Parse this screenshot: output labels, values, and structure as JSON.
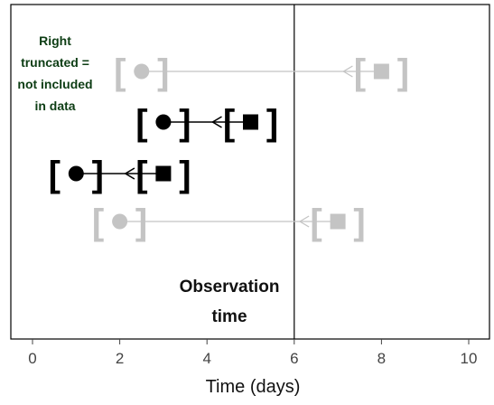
{
  "x_axis": {
    "label": "Time (days)",
    "ticks": [
      0,
      2,
      4,
      6,
      8,
      10
    ],
    "range": [
      -0.5,
      10.5
    ]
  },
  "observation_time": {
    "value": 6,
    "label_line1": "Observation",
    "label_line2": "time"
  },
  "note": {
    "lines": [
      "Right",
      "truncated =",
      "not included",
      "in data"
    ],
    "color": "#0d3d14"
  },
  "colors": {
    "included": "#000000",
    "truncated": "#c4c4c4",
    "frame": "#000000"
  },
  "pairs": [
    {
      "start": 2.5,
      "end": 8,
      "included": false
    },
    {
      "start": 3,
      "end": 5,
      "included": true
    },
    {
      "start": 1,
      "end": 3,
      "included": true
    },
    {
      "start": 2,
      "end": 7,
      "included": false
    }
  ],
  "bracket_chars": {
    "open": "[",
    "close": "]"
  }
}
